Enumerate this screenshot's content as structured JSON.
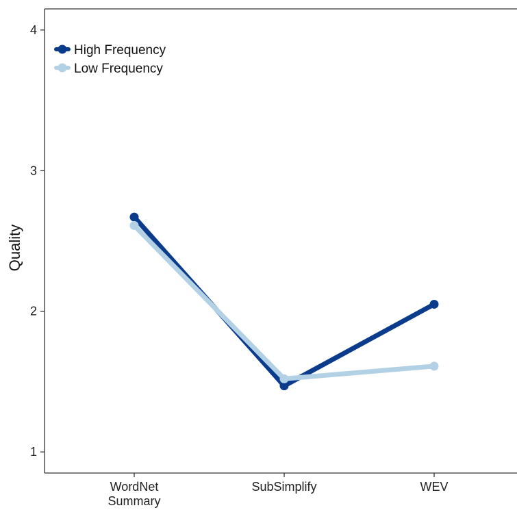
{
  "chart_data": {
    "type": "line",
    "title": "",
    "xlabel": "",
    "ylabel": "Quality",
    "categories": [
      [
        "WordNet",
        "Summary"
      ],
      [
        "SubSimplify"
      ],
      [
        "WEV"
      ]
    ],
    "ylim": [
      0.85,
      4.15
    ],
    "yticks": [
      1,
      2,
      3,
      4
    ],
    "grid": false,
    "legend_position": "top-left",
    "series": [
      {
        "name": "High Frequency",
        "color": "#0b3c8c",
        "values": [
          2.67,
          1.47,
          2.05
        ]
      },
      {
        "name": "Low Frequency",
        "color": "#b3d1e5",
        "values": [
          2.61,
          1.52,
          1.61
        ]
      }
    ]
  }
}
